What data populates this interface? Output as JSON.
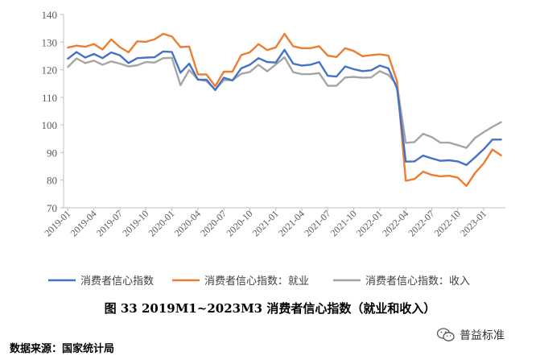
{
  "chart_data": {
    "type": "line",
    "title": "",
    "xlabel": "",
    "ylabel": "",
    "ylim": [
      70,
      140
    ],
    "yticks": [
      70,
      80,
      90,
      100,
      110,
      120,
      130,
      140
    ],
    "grid": false,
    "legend_position": "bottom",
    "x_tick_labels": [
      "2019-01",
      "2019-04",
      "2019-07",
      "2019-10",
      "2020-01",
      "2020-04",
      "2020-07",
      "2020-10",
      "2021-01",
      "2021-04",
      "2021-07",
      "2021-10",
      "2022-01",
      "2022-04",
      "2022-07",
      "2022-10",
      "2023-01"
    ],
    "x_tick_step": 3,
    "series": [
      {
        "name": "消费者信心指数",
        "color": "#4472C4",
        "values": [
          124,
          126.4,
          124.4,
          125.7,
          124.2,
          126.3,
          125.2,
          122.4,
          124.2,
          124.4,
          124.5,
          126.6,
          126.4,
          118.9,
          122.2,
          116.4,
          116.4,
          112.6,
          117.1,
          116.1,
          120.5,
          121.8,
          124.2,
          122.8,
          122.6,
          127.2,
          122.2,
          121.5,
          121.8,
          122.8,
          117.8,
          117.5,
          121.2,
          120.2,
          119.5,
          119.8,
          121.5,
          120.5,
          113.2,
          86.7,
          86.8,
          88.9,
          87.9,
          87,
          87.2,
          86.8,
          85.5,
          88.3,
          91.2,
          94.7,
          94.7
        ]
      },
      {
        "name": "消费者信心指数：就业",
        "color": "#ED7D31",
        "values": [
          128,
          128.7,
          128.3,
          129.3,
          127.3,
          131,
          128.2,
          126.3,
          130.3,
          130.1,
          131,
          133,
          132,
          128.2,
          128.4,
          118.3,
          118.3,
          114,
          119.3,
          119.3,
          125.3,
          126.3,
          129.3,
          127.1,
          128.1,
          133,
          128.5,
          127.8,
          127.8,
          128.5,
          125.1,
          124.6,
          127.8,
          126.8,
          124.9,
          125.3,
          125.6,
          125.1,
          115.7,
          79.8,
          80.4,
          83.1,
          81.9,
          81.4,
          81.6,
          80.9,
          77.9,
          82.6,
          86.1,
          91.1,
          89
        ]
      },
      {
        "name": "消费者信心指数：收入",
        "color": "#A5A5A5",
        "values": [
          121,
          124.1,
          122.4,
          123.3,
          121.8,
          123,
          122.2,
          121.2,
          121.6,
          122.8,
          122.6,
          124.2,
          124.3,
          114.4,
          119.9,
          116.5,
          115.9,
          112.8,
          116.3,
          116.2,
          118.5,
          119.2,
          121.8,
          119.4,
          121.9,
          124.5,
          119.1,
          118.4,
          118.4,
          118.8,
          114.2,
          114.2,
          117.2,
          117.4,
          117.1,
          117.2,
          119.5,
          118.1,
          114.4,
          93.5,
          93.8,
          96.8,
          95.6,
          93.6,
          93.6,
          92.7,
          91.7,
          95.3,
          97.4,
          99.3,
          101
        ]
      }
    ]
  },
  "figure_caption": "图 33   2019M1~2023M3 消费者信心指数（就业和收入）",
  "source": "数据来源：国家统计局",
  "watermark_text": "普益标准",
  "watermark_icon": "wechat-icon"
}
